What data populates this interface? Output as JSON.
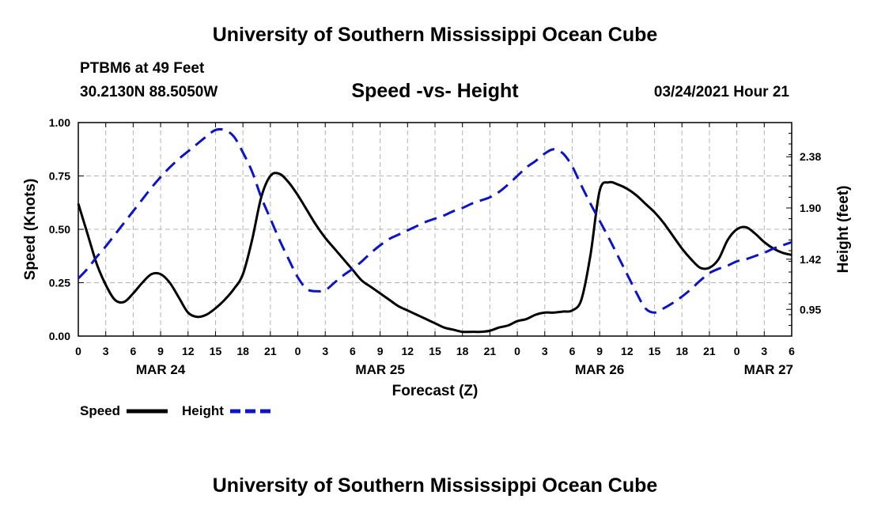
{
  "page": {
    "title_top": "University of Southern Mississippi Ocean Cube",
    "title_bottom": "University of Southern Mississippi Ocean Cube",
    "station": "PTBM6 at 49 Feet",
    "coords": "30.2130N 88.5050W",
    "datetime": "03/24/2021 Hour 21"
  },
  "colors": {
    "speed": "#000000",
    "height": "#0a14c8",
    "grid": "#b4b4b4"
  },
  "chart_data": {
    "type": "line",
    "title": "Speed -vs- Height",
    "xlabel": "Forecast (Z)",
    "ylabel": "Speed (Knots)",
    "y2label": "Height (feet)",
    "x_range": [
      0,
      78
    ],
    "x_tick_step": 3,
    "x_tick_labels": [
      "0",
      "3",
      "6",
      "9",
      "12",
      "15",
      "18",
      "21",
      "0",
      "3",
      "6",
      "9",
      "12",
      "15",
      "18",
      "21",
      "0",
      "3",
      "6",
      "9",
      "12",
      "15",
      "18",
      "21",
      "0",
      "3",
      "6"
    ],
    "date_labels": [
      {
        "x": 9,
        "label": "MAR 24"
      },
      {
        "x": 33,
        "label": "MAR 25"
      },
      {
        "x": 57,
        "label": "MAR 26"
      },
      {
        "x": 78,
        "label": "MAR 27"
      }
    ],
    "ylim": [
      0,
      1.0
    ],
    "y_ticks": [
      0,
      0.25,
      0.5,
      0.75,
      1.0
    ],
    "y_tick_labels": [
      "0.00",
      "0.25",
      "0.50",
      "0.75",
      "1.00"
    ],
    "y2lim": [
      0.7,
      2.7
    ],
    "y2_ticks": [
      0.95,
      1.42,
      1.9,
      2.38
    ],
    "y2_tick_labels": [
      "0.95",
      "1.42",
      "1.90",
      "2.38"
    ],
    "series": [
      {
        "name": "Speed",
        "axis": "left",
        "x": [
          0,
          1,
          2,
          3,
          4,
          5,
          6,
          7,
          8,
          9,
          10,
          11,
          12,
          13,
          14,
          15,
          16,
          17,
          18,
          19,
          20,
          21,
          22,
          23,
          24,
          25,
          26,
          27,
          28,
          29,
          30,
          31,
          32,
          33,
          34,
          35,
          36,
          37,
          38,
          39,
          40,
          41,
          42,
          43,
          44,
          45,
          46,
          47,
          48,
          49,
          50,
          51,
          52,
          53,
          54,
          55,
          56,
          57,
          58,
          59,
          60,
          61,
          62,
          63,
          64,
          65,
          66,
          67,
          68,
          69,
          70,
          71,
          72,
          73,
          74,
          75,
          76,
          77,
          78
        ],
        "values": [
          0.62,
          0.48,
          0.34,
          0.24,
          0.17,
          0.16,
          0.2,
          0.25,
          0.29,
          0.29,
          0.25,
          0.18,
          0.11,
          0.09,
          0.1,
          0.13,
          0.17,
          0.22,
          0.29,
          0.45,
          0.65,
          0.75,
          0.76,
          0.72,
          0.66,
          0.59,
          0.52,
          0.46,
          0.41,
          0.36,
          0.31,
          0.26,
          0.23,
          0.2,
          0.17,
          0.14,
          0.12,
          0.1,
          0.08,
          0.06,
          0.04,
          0.03,
          0.02,
          0.02,
          0.02,
          0.025,
          0.04,
          0.05,
          0.07,
          0.08,
          0.1,
          0.11,
          0.11,
          0.115,
          0.12,
          0.17,
          0.38,
          0.68,
          0.72,
          0.71,
          0.69,
          0.66,
          0.62,
          0.58,
          0.53,
          0.47,
          0.41,
          0.36,
          0.32,
          0.32,
          0.36,
          0.45,
          0.5,
          0.51,
          0.48,
          0.44,
          0.41,
          0.39,
          0.38
        ]
      },
      {
        "name": "Height",
        "axis": "right",
        "x": [
          0,
          1,
          2,
          3,
          4,
          5,
          6,
          7,
          8,
          9,
          10,
          11,
          12,
          13,
          14,
          15,
          16,
          17,
          18,
          19,
          20,
          21,
          22,
          23,
          24,
          25,
          26,
          27,
          28,
          29,
          30,
          31,
          32,
          33,
          34,
          35,
          36,
          37,
          38,
          39,
          40,
          41,
          42,
          43,
          44,
          45,
          46,
          47,
          48,
          49,
          50,
          51,
          52,
          53,
          54,
          55,
          56,
          57,
          58,
          59,
          60,
          61,
          62,
          63,
          64,
          65,
          66,
          67,
          68,
          69,
          70,
          71,
          72,
          73,
          74,
          75,
          76,
          77,
          78
        ],
        "values": [
          1.24,
          1.33,
          1.44,
          1.54,
          1.65,
          1.76,
          1.87,
          1.98,
          2.09,
          2.19,
          2.28,
          2.36,
          2.43,
          2.5,
          2.57,
          2.63,
          2.63,
          2.57,
          2.42,
          2.24,
          2.0,
          1.8,
          1.6,
          1.42,
          1.25,
          1.14,
          1.12,
          1.13,
          1.2,
          1.27,
          1.33,
          1.4,
          1.48,
          1.55,
          1.61,
          1.65,
          1.69,
          1.73,
          1.77,
          1.8,
          1.83,
          1.87,
          1.9,
          1.94,
          1.97,
          2.0,
          2.05,
          2.12,
          2.2,
          2.28,
          2.34,
          2.41,
          2.45,
          2.41,
          2.29,
          2.11,
          1.94,
          1.78,
          1.62,
          1.45,
          1.28,
          1.11,
          0.96,
          0.92,
          0.96,
          1.01,
          1.07,
          1.14,
          1.22,
          1.29,
          1.33,
          1.36,
          1.4,
          1.42,
          1.45,
          1.48,
          1.52,
          1.55,
          1.58
        ]
      }
    ],
    "legend": [
      {
        "name": "Speed",
        "style": "solid"
      },
      {
        "name": "Height",
        "style": "dashed"
      }
    ],
    "legend_position": "bottom-left"
  }
}
